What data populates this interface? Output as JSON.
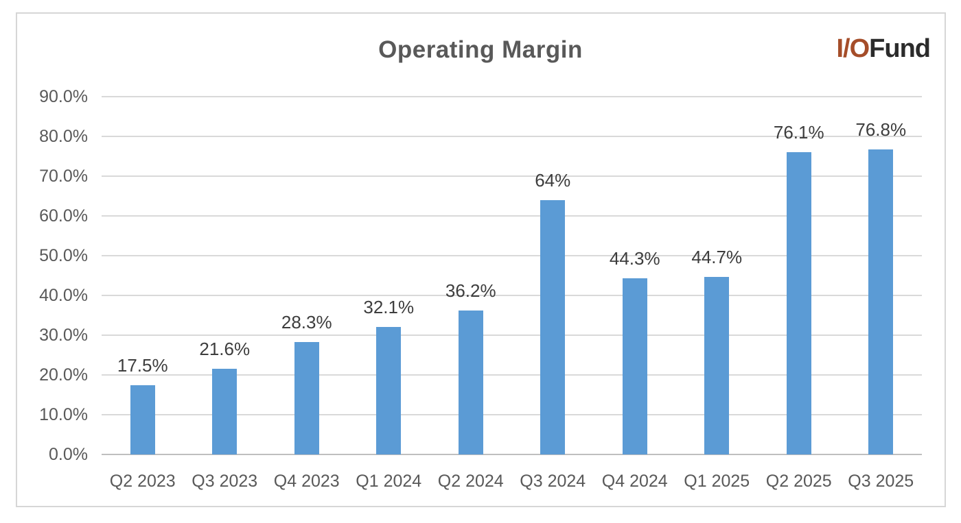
{
  "header": {
    "logo": {
      "io": "I/O",
      "fund": "Fund"
    }
  },
  "colors": {
    "bar": "#5b9bd5",
    "grid": "#d9d9d9",
    "axis_line": "#bfbfbf",
    "title_text": "#595959",
    "tick_text": "#595959",
    "data_label_text": "#3d3d3d",
    "logo_io": "#a54d29",
    "logo_fund": "#2b2b2b",
    "frame_border": "#d6d6d6"
  },
  "chart_data": {
    "type": "bar",
    "title": "Operating Margin",
    "categories": [
      "Q2 2023",
      "Q3 2023",
      "Q4 2023",
      "Q1 2024",
      "Q2 2024",
      "Q3 2024",
      "Q4 2024",
      "Q1 2025",
      "Q2 2025",
      "Q3 2025"
    ],
    "values": [
      17.5,
      21.6,
      28.3,
      32.1,
      36.2,
      64,
      44.3,
      44.7,
      76.1,
      76.8
    ],
    "data_labels": [
      "17.5%",
      "21.6%",
      "28.3%",
      "32.1%",
      "36.2%",
      "64%",
      "44.3%",
      "44.7%",
      "76.1%",
      "76.8%"
    ],
    "xlabel": "",
    "ylabel": "",
    "ylim": [
      0,
      90
    ],
    "ytick_step": 10,
    "ytick_labels": [
      "0.0%",
      "10.0%",
      "20.0%",
      "30.0%",
      "40.0%",
      "50.0%",
      "60.0%",
      "70.0%",
      "80.0%",
      "90.0%"
    ],
    "grid": true,
    "legend": false
  }
}
